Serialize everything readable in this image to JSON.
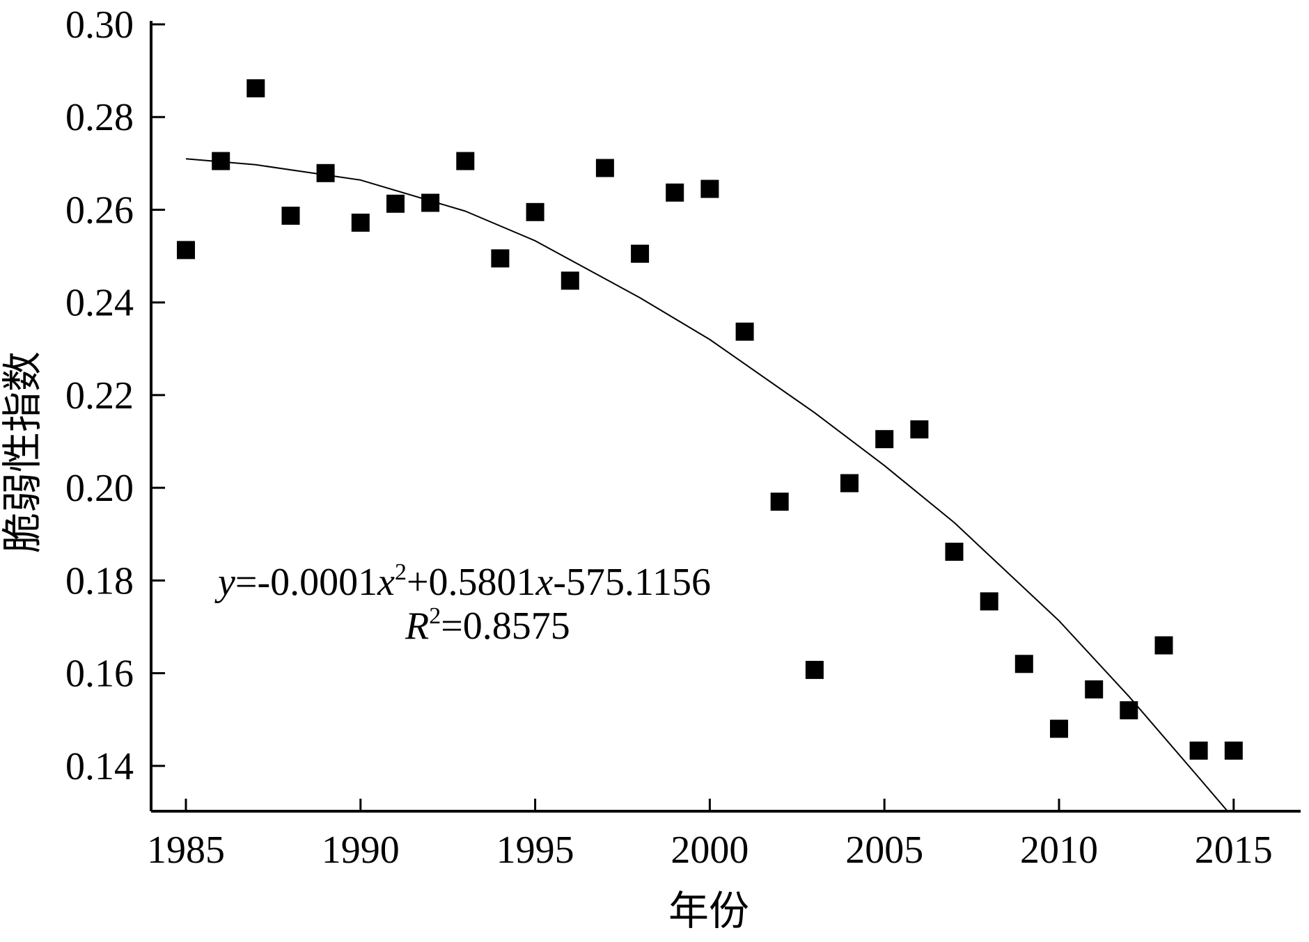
{
  "chart_data": {
    "type": "scatter",
    "xlabel": "年份",
    "ylabel": "脆弱性指数",
    "xlim": [
      1984,
      2017
    ],
    "ylim": [
      0.13,
      0.3
    ],
    "xticks": [
      "1985",
      "1990",
      "1995",
      "2000",
      "2005",
      "2010",
      "2015"
    ],
    "yticks": [
      "0.14",
      "0.16",
      "0.18",
      "0.20",
      "0.22",
      "0.24",
      "0.26",
      "0.28",
      "0.30"
    ],
    "grid": false,
    "series": [
      {
        "marker": "square",
        "color": "#000000",
        "points": [
          {
            "x": 1985,
            "y": 0.2513
          },
          {
            "x": 1986,
            "y": 0.2705
          },
          {
            "x": 1987,
            "y": 0.2862
          },
          {
            "x": 1988,
            "y": 0.2587
          },
          {
            "x": 1989,
            "y": 0.2679
          },
          {
            "x": 1990,
            "y": 0.2572
          },
          {
            "x": 1991,
            "y": 0.2613
          },
          {
            "x": 1992,
            "y": 0.2615
          },
          {
            "x": 1993,
            "y": 0.2705
          },
          {
            "x": 1994,
            "y": 0.2495
          },
          {
            "x": 1995,
            "y": 0.2595
          },
          {
            "x": 1996,
            "y": 0.2447
          },
          {
            "x": 1997,
            "y": 0.269
          },
          {
            "x": 1998,
            "y": 0.2505
          },
          {
            "x": 1999,
            "y": 0.2637
          },
          {
            "x": 2000,
            "y": 0.2645
          },
          {
            "x": 2001,
            "y": 0.2337
          },
          {
            "x": 2002,
            "y": 0.197
          },
          {
            "x": 2003,
            "y": 0.1607
          },
          {
            "x": 2004,
            "y": 0.201
          },
          {
            "x": 2005,
            "y": 0.2105
          },
          {
            "x": 2006,
            "y": 0.2126
          },
          {
            "x": 2007,
            "y": 0.1862
          },
          {
            "x": 2008,
            "y": 0.1755
          },
          {
            "x": 2009,
            "y": 0.162
          },
          {
            "x": 2010,
            "y": 0.148
          },
          {
            "x": 2011,
            "y": 0.1565
          },
          {
            "x": 2012,
            "y": 0.152
          },
          {
            "x": 2013,
            "y": 0.166
          },
          {
            "x": 2014,
            "y": 0.1433
          },
          {
            "x": 2015,
            "y": 0.1433
          }
        ]
      }
    ],
    "trendline": {
      "type": "polynomial-2",
      "color": "#000000",
      "x_range": [
        1985,
        2014.85
      ],
      "points": [
        {
          "x": 1985,
          "y": 0.271
        },
        {
          "x": 1987,
          "y": 0.2697
        },
        {
          "x": 1990,
          "y": 0.2664
        },
        {
          "x": 1993,
          "y": 0.2597
        },
        {
          "x": 1995,
          "y": 0.2533
        },
        {
          "x": 1998,
          "y": 0.241
        },
        {
          "x": 2000,
          "y": 0.232
        },
        {
          "x": 2003,
          "y": 0.2162
        },
        {
          "x": 2005,
          "y": 0.2048
        },
        {
          "x": 2007,
          "y": 0.1925
        },
        {
          "x": 2010,
          "y": 0.1713
        },
        {
          "x": 2012,
          "y": 0.155
        },
        {
          "x": 2014,
          "y": 0.1375
        },
        {
          "x": 2014.85,
          "y": 0.13
        }
      ]
    },
    "annotation": {
      "equation_parts": {
        "y": "y",
        "eq": "=-0.0001",
        "x1": "x",
        "sup2": "2",
        "mid": "+0.5801",
        "x2": "x",
        "tail": "-575.1156"
      },
      "r2_parts": {
        "R": "R",
        "sup2": "2",
        "value": "=0.8575"
      }
    }
  }
}
